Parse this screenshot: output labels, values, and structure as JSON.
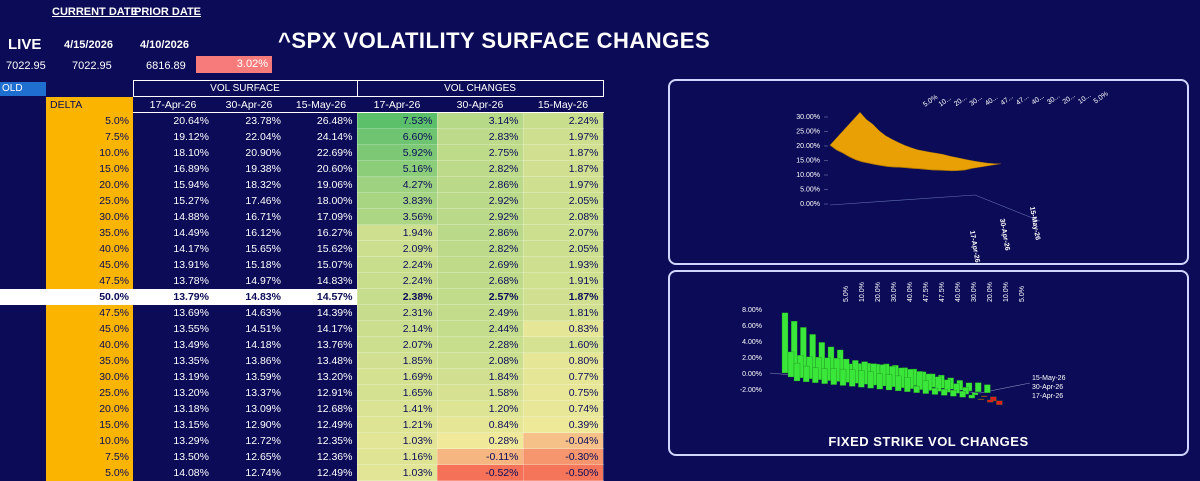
{
  "header": {
    "current_date_label": "CURRENT DATE",
    "prior_date_label": "PRIOR DATE",
    "live_label": "LIVE",
    "current_date": "4/15/2026",
    "prior_date": "4/10/2026",
    "title": "^SPX VOLATILITY SURFACE CHANGES",
    "spot_live": "7022.95",
    "spot_current": "7022.95",
    "spot_prior": "6816.89",
    "spot_change": "3.02%",
    "old_tag": "OLD"
  },
  "table": {
    "vol_surface_label": "VOL SURFACE",
    "vol_changes_label": "VOL CHANGES",
    "delta_header": "DELTA",
    "expiries": [
      "17-Apr-26",
      "30-Apr-26",
      "15-May-26"
    ],
    "rows": [
      {
        "delta": "5.0%",
        "vs": [
          "20.64%",
          "23.78%",
          "26.48%"
        ],
        "vc": [
          "7.53%",
          "3.14%",
          "2.24%"
        ]
      },
      {
        "delta": "7.5%",
        "vs": [
          "19.12%",
          "22.04%",
          "24.14%"
        ],
        "vc": [
          "6.60%",
          "2.83%",
          "1.97%"
        ]
      },
      {
        "delta": "10.0%",
        "vs": [
          "18.10%",
          "20.90%",
          "22.69%"
        ],
        "vc": [
          "5.92%",
          "2.75%",
          "1.87%"
        ]
      },
      {
        "delta": "15.0%",
        "vs": [
          "16.89%",
          "19.38%",
          "20.60%"
        ],
        "vc": [
          "5.16%",
          "2.82%",
          "1.87%"
        ]
      },
      {
        "delta": "20.0%",
        "vs": [
          "15.94%",
          "18.32%",
          "19.06%"
        ],
        "vc": [
          "4.27%",
          "2.86%",
          "1.97%"
        ]
      },
      {
        "delta": "25.0%",
        "vs": [
          "15.27%",
          "17.46%",
          "18.00%"
        ],
        "vc": [
          "3.83%",
          "2.92%",
          "2.05%"
        ]
      },
      {
        "delta": "30.0%",
        "vs": [
          "14.88%",
          "16.71%",
          "17.09%"
        ],
        "vc": [
          "3.56%",
          "2.92%",
          "2.08%"
        ]
      },
      {
        "delta": "35.0%",
        "vs": [
          "14.49%",
          "16.12%",
          "16.27%"
        ],
        "vc": [
          "1.94%",
          "2.86%",
          "2.07%"
        ]
      },
      {
        "delta": "40.0%",
        "vs": [
          "14.17%",
          "15.65%",
          "15.62%"
        ],
        "vc": [
          "2.09%",
          "2.82%",
          "2.05%"
        ]
      },
      {
        "delta": "45.0%",
        "vs": [
          "13.91%",
          "15.18%",
          "15.07%"
        ],
        "vc": [
          "2.24%",
          "2.69%",
          "1.93%"
        ]
      },
      {
        "delta": "47.5%",
        "vs": [
          "13.78%",
          "14.97%",
          "14.83%"
        ],
        "vc": [
          "2.24%",
          "2.68%",
          "1.91%"
        ]
      },
      {
        "delta": "50.0%",
        "vs": [
          "13.79%",
          "14.83%",
          "14.57%"
        ],
        "vc": [
          "2.38%",
          "2.57%",
          "1.87%"
        ],
        "atm": true
      },
      {
        "delta": "47.5%",
        "vs": [
          "13.69%",
          "14.63%",
          "14.39%"
        ],
        "vc": [
          "2.31%",
          "2.49%",
          "1.81%"
        ]
      },
      {
        "delta": "45.0%",
        "vs": [
          "13.55%",
          "14.51%",
          "14.17%"
        ],
        "vc": [
          "2.14%",
          "2.44%",
          "0.83%"
        ]
      },
      {
        "delta": "40.0%",
        "vs": [
          "13.49%",
          "14.18%",
          "13.76%"
        ],
        "vc": [
          "2.07%",
          "2.28%",
          "1.60%"
        ]
      },
      {
        "delta": "35.0%",
        "vs": [
          "13.35%",
          "13.86%",
          "13.48%"
        ],
        "vc": [
          "1.85%",
          "2.08%",
          "0.80%"
        ]
      },
      {
        "delta": "30.0%",
        "vs": [
          "13.19%",
          "13.59%",
          "13.20%"
        ],
        "vc": [
          "1.69%",
          "1.84%",
          "0.77%"
        ]
      },
      {
        "delta": "25.0%",
        "vs": [
          "13.20%",
          "13.37%",
          "12.91%"
        ],
        "vc": [
          "1.65%",
          "1.58%",
          "0.75%"
        ]
      },
      {
        "delta": "20.0%",
        "vs": [
          "13.18%",
          "13.09%",
          "12.68%"
        ],
        "vc": [
          "1.41%",
          "1.20%",
          "0.74%"
        ]
      },
      {
        "delta": "15.0%",
        "vs": [
          "13.15%",
          "12.90%",
          "12.49%"
        ],
        "vc": [
          "1.21%",
          "0.84%",
          "0.39%"
        ]
      },
      {
        "delta": "10.0%",
        "vs": [
          "13.29%",
          "12.72%",
          "12.35%"
        ],
        "vc": [
          "1.03%",
          "0.28%",
          "-0.04%"
        ]
      },
      {
        "delta": "7.5%",
        "vs": [
          "13.50%",
          "12.65%",
          "12.36%"
        ],
        "vc": [
          "1.16%",
          "-0.11%",
          "-0.30%"
        ]
      },
      {
        "delta": "5.0%",
        "vs": [
          "14.08%",
          "12.74%",
          "12.49%"
        ],
        "vc": [
          "1.03%",
          "-0.52%",
          "-0.50%"
        ]
      }
    ]
  },
  "surface_chart": {
    "y_ticks": [
      "30.00%",
      "25.00%",
      "20.00%",
      "15.00%",
      "10.00%",
      "5.00%",
      "0.00%"
    ],
    "top_labels": [
      "5.0%",
      "10...",
      "20...",
      "30...",
      "40...",
      "47...",
      "47...",
      "40...",
      "30...",
      "20...",
      "10...",
      "5.0%"
    ],
    "depth_labels": [
      "17-Apr-26",
      "30-Apr-26",
      "15-May-26"
    ],
    "colors": {
      "surface": "#f5a800",
      "surface_dark": "#b07a00"
    }
  },
  "bar_chart": {
    "title": "FIXED STRIKE VOL CHANGES",
    "y_ticks": [
      "8.00%",
      "6.00%",
      "4.00%",
      "2.00%",
      "0.00%",
      "-2.00%"
    ],
    "top_labels": [
      "5.0%",
      "10.0%",
      "20.0%",
      "30.0%",
      "40.0%",
      "47.5%",
      "47.5%",
      "40.0%",
      "30.0%",
      "20.0%",
      "10.0%",
      "5.0%"
    ],
    "depth_labels": [
      "15-May-26",
      "30-Apr-26",
      "17-Apr-26"
    ],
    "colors": {
      "positive": "#39e639",
      "negative": "#e02020"
    }
  },
  "colors": {
    "background": "#0b0b57",
    "delta_fill": "#fbb500",
    "change_badge": "#f87b7b",
    "high_change": "#5cbf6a",
    "mid_change": "#c8e07a",
    "low_change": "#f5e89a",
    "negative_change": "#f26a6a"
  }
}
